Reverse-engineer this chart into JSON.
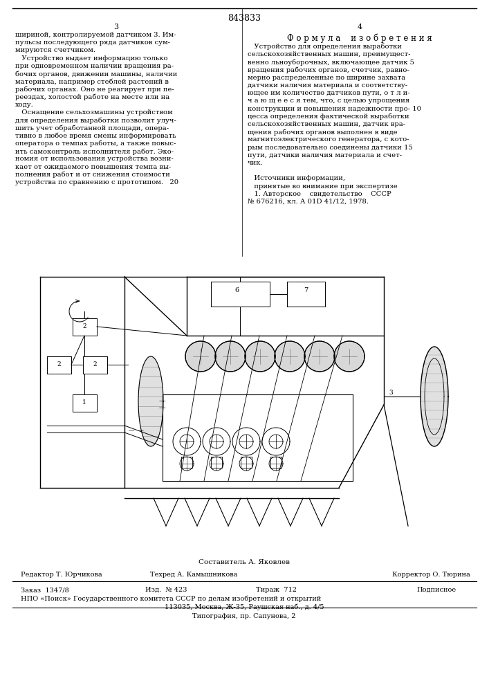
{
  "patent_number": "843833",
  "page_left": "3",
  "page_right": "4",
  "bg_color": "#ffffff",
  "text_color": "#000000",
  "right_col_header": "Ф о р м у л а    и з о б р е т е н и я",
  "left_col_text": [
    "шириной, контролируемой датчиком 3. Им-",
    "пульсы последующего ряда датчиков сум-",
    "мируются счетчиком.",
    "   Устройство выдает информацию только",
    "при одновременном наличии вращения ра-",
    "бочих органов, движении машины, наличии",
    "материала, например стеблей растений в",
    "рабочих органах. Оно не реагирует при пе-",
    "реездах, холостой работе на месте или на",
    "ходу.",
    "   Оснащение сельхозмашины устройством",
    "для определения выработки позволит улуч-",
    "шить учет обработанной площади, опера-",
    "тивно в любое время смены информировать",
    "оператора о темпах работы, а также повыс-",
    "ить самоконтроль исполнителя работ. Эко-",
    "номия от использования устройства возни-",
    "кает от ожидаемого повышения темпа вы-",
    "полнения работ и от снижения стоимости",
    "устройства по сравнению с прототипом.   20"
  ],
  "right_col_text": [
    "   Устройство для определения выработки",
    "сельскохозяйственных машин, преимущест-",
    "венно льноуборочных, включающее датчик 5",
    "вращения рабочих органов, счетчик, равно-",
    "мерно распределенные по ширине захвата",
    "датчики наличия материала и соответству-",
    "ющее им количество датчиков пути, о т л и-",
    "ч а ю щ е е с я тем, что, с целью упрощения",
    "конструкции и повышения надежности про- 10",
    "цесса определения фактической выработки",
    "сельскохозяйственных машин, датчик вра-",
    "щения рабочих органов выполнен в виде",
    "магнитоэлектрического генератора, с кото-",
    "рым последовательно соединены датчики 15",
    "пути, датчики наличия материала и счет-",
    "чик.",
    "",
    "   Источники информации,",
    "   принятые во внимание при экспертизе",
    "   1. Авторское    свидетельство    СССР",
    "№ 676216, кл. А 01D 41/12, 1978."
  ],
  "footer_composer": "Составитель А. Яковлев",
  "footer_editor": "Редактор Т. Юрчикова",
  "footer_tech": "Техред А. Камышникова",
  "footer_corrector": "Корректор О. Тюрина",
  "footer_order": "Заказ  1347/8",
  "footer_izd": "Изд.  № 423",
  "footer_tirazh": "Тираж  712",
  "footer_podp": "Подписное",
  "footer_npo": "НПО «Поиск» Государственного комитета СССР по делам изобретений и открытий",
  "footer_addr": "113035, Москва, Ж-35, Раушская наб., д. 4/5",
  "footer_typo": "Типография, пр. Сапунова, 2"
}
